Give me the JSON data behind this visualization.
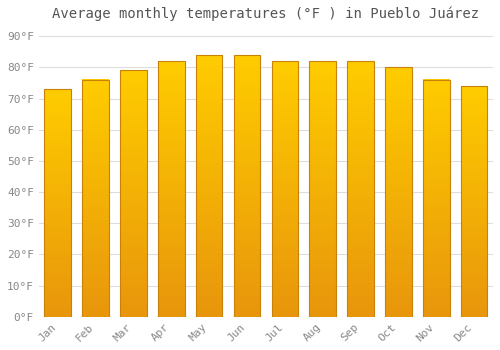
{
  "title": "Average monthly temperatures (°F ) in Pueblo Juárez",
  "months": [
    "Jan",
    "Feb",
    "Mar",
    "Apr",
    "May",
    "Jun",
    "Jul",
    "Aug",
    "Sep",
    "Oct",
    "Nov",
    "Dec"
  ],
  "values": [
    73,
    76,
    79,
    82,
    84,
    84,
    82,
    82,
    82,
    80,
    76,
    74
  ],
  "bar_color_top": "#FFCC00",
  "bar_color_bottom": "#E8960C",
  "bar_edge_color": "#C8820A",
  "background_color": "#FFFFFF",
  "grid_color": "#DDDDDD",
  "yticks": [
    0,
    10,
    20,
    30,
    40,
    50,
    60,
    70,
    80,
    90
  ],
  "ylim": [
    0,
    93
  ],
  "font_color": "#888888",
  "title_color": "#555555",
  "title_fontsize": 10,
  "tick_fontsize": 8,
  "bar_width": 0.7
}
